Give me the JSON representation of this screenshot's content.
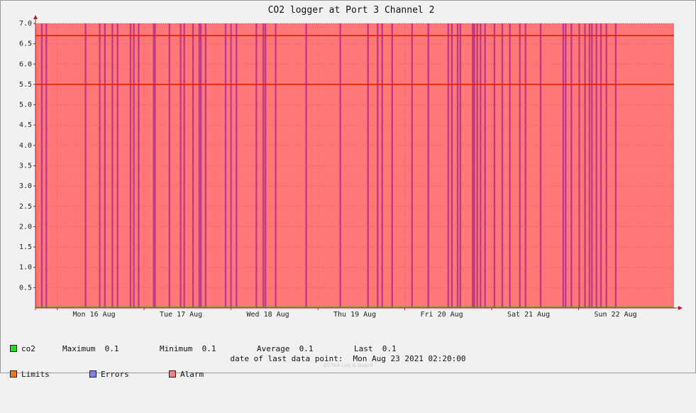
{
  "chart_data": {
    "type": "area",
    "title": "CO2 logger at Port 3 Channel 2",
    "ylim": [
      0,
      7.0
    ],
    "xlim": [
      "2021-08-15T18:00",
      "2021-08-23T02:20"
    ],
    "y_ticks": [
      "0.5",
      "1.0",
      "1.5",
      "2.0",
      "2.5",
      "3.0",
      "3.5",
      "4.0",
      "4.5",
      "5.0",
      "5.5",
      "6.0",
      "6.5",
      "7.0"
    ],
    "x_ticks": [
      {
        "label": "Mon 16 Aug",
        "value": "2021-08-16T00:00"
      },
      {
        "label": "Tue 17 Aug",
        "value": "2021-08-17T00:00"
      },
      {
        "label": "Wed 18 Aug",
        "value": "2021-08-18T00:00"
      },
      {
        "label": "Thu 19 Aug",
        "value": "2021-08-19T00:00"
      },
      {
        "label": "Fri 20 Aug",
        "value": "2021-08-20T00:00"
      },
      {
        "label": "Sat 21 Aug",
        "value": "2021-08-21T00:00"
      },
      {
        "label": "Sun 22 Aug",
        "value": "2021-08-22T00:00"
      }
    ],
    "grid": true,
    "limits": [
      6.7,
      5.5
    ],
    "alarm_band": {
      "from": "2021-08-15T18:00",
      "to": "2021-08-23T02:20",
      "ymin": 0,
      "ymax": 7.0
    },
    "error_times": [
      "2021-08-15T19:45",
      "2021-08-15T21:00",
      "2021-08-16T07:50",
      "2021-08-16T11:45",
      "2021-08-16T13:10",
      "2021-08-16T15:15",
      "2021-08-16T16:40",
      "2021-08-16T20:15",
      "2021-08-16T21:10",
      "2021-08-16T22:30",
      "2021-08-17T02:40",
      "2021-08-17T03:00",
      "2021-08-17T07:00",
      "2021-08-17T10:05",
      "2021-08-17T11:05",
      "2021-08-17T13:30",
      "2021-08-17T15:15",
      "2021-08-17T15:40",
      "2021-08-17T17:00",
      "2021-08-17T22:30",
      "2021-08-18T00:00",
      "2021-08-18T01:30",
      "2021-08-18T07:00",
      "2021-08-18T08:55",
      "2021-08-18T09:30",
      "2021-08-18T12:20",
      "2021-08-18T20:45",
      "2021-08-19T06:10",
      "2021-08-19T13:50",
      "2021-08-19T16:30",
      "2021-08-19T17:45",
      "2021-08-19T20:30",
      "2021-08-20T02:00",
      "2021-08-20T06:30",
      "2021-08-20T12:00",
      "2021-08-20T13:00",
      "2021-08-20T14:35",
      "2021-08-20T15:20",
      "2021-08-20T18:45",
      "2021-08-20T19:10",
      "2021-08-20T20:00",
      "2021-08-20T20:55",
      "2021-08-20T22:10",
      "2021-08-21T00:45",
      "2021-08-21T02:55",
      "2021-08-21T05:00",
      "2021-08-21T07:45",
      "2021-08-21T09:20",
      "2021-08-21T13:30",
      "2021-08-21T19:45",
      "2021-08-21T20:25",
      "2021-08-21T22:00",
      "2021-08-22T00:10",
      "2021-08-22T01:45",
      "2021-08-22T03:00",
      "2021-08-22T03:40",
      "2021-08-22T04:55",
      "2021-08-22T06:10",
      "2021-08-22T07:40",
      "2021-08-22T10:15"
    ],
    "series": [
      {
        "name": "co2",
        "color": "#00d000"
      }
    ]
  },
  "legend": {
    "co2": {
      "label": "co2",
      "color": "#22dd22"
    },
    "maximum": {
      "label": "Maximum",
      "value": "0.1"
    },
    "minimum": {
      "label": "Minimum",
      "value": "0.1"
    },
    "average": {
      "label": "Average",
      "value": "0.1"
    },
    "last": {
      "label": "Last",
      "value": "0.1"
    },
    "limits": {
      "label": "Limits",
      "color": "#f07818"
    },
    "errors": {
      "label": "Errors",
      "color": "#7b7ff0"
    },
    "alarm": {
      "label": "Alarm",
      "color": "#f08080"
    }
  },
  "footer": {
    "date_label": "date of last data point:",
    "date_value": "Mon Aug 23 2021 02:20:00",
    "watermark": "OCTAA Log & Guard"
  },
  "colors": {
    "alarm_fill": "#ff7777",
    "error_fill": "#c03a8a",
    "limit_line": "#e02000",
    "axis": "#b02020",
    "grid": "#d06060"
  }
}
